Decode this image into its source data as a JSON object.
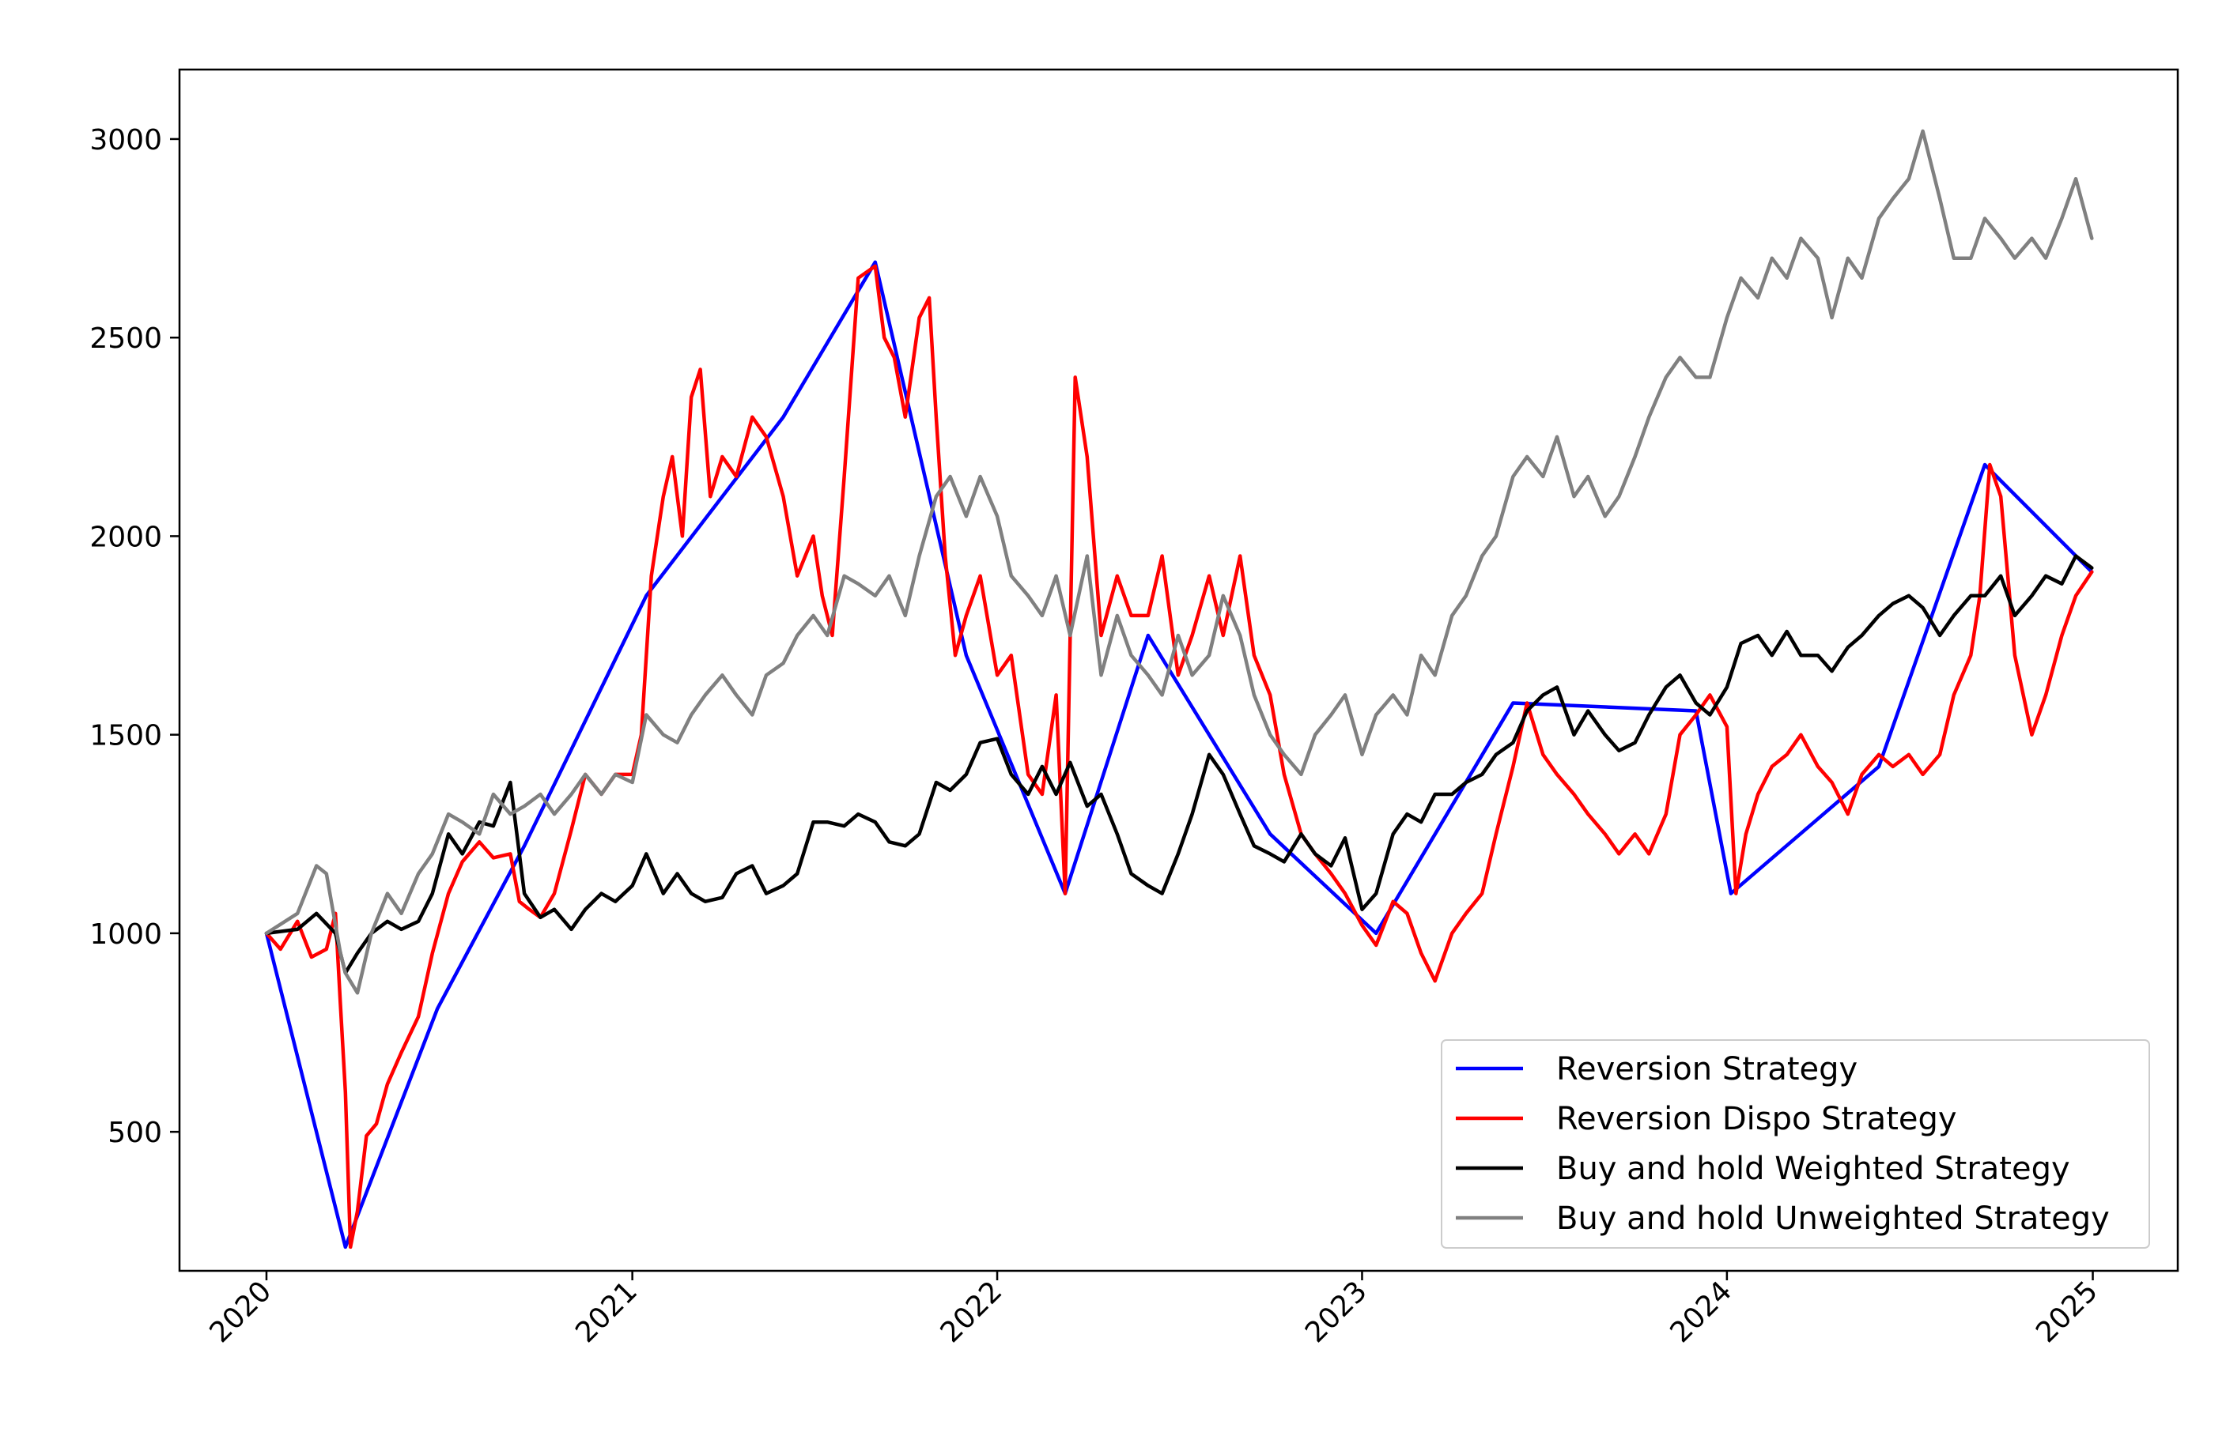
{
  "chart_data": {
    "type": "line",
    "title": "",
    "xlabel": "",
    "ylabel": "",
    "x_range": [
      "2019-10-06",
      "2025-03-27"
    ],
    "ylim": [
      150,
      3175
    ],
    "grid": false,
    "legend_position": "lower right",
    "y_ticks": [
      {
        "value": 500,
        "label": "500"
      },
      {
        "value": 1000,
        "label": "1000"
      },
      {
        "value": 1500,
        "label": "1500"
      },
      {
        "value": 2000,
        "label": "2000"
      },
      {
        "value": 2500,
        "label": "2500"
      },
      {
        "value": 3000,
        "label": "3000"
      }
    ],
    "x_ticks": [
      {
        "date": "2020-01-01",
        "label": "2020"
      },
      {
        "date": "2021-01-01",
        "label": "2021"
      },
      {
        "date": "2022-01-01",
        "label": "2022"
      },
      {
        "date": "2023-01-01",
        "label": "2023"
      },
      {
        "date": "2024-01-01",
        "label": "2024"
      },
      {
        "date": "2025-01-01",
        "label": "2025"
      }
    ],
    "series": [
      {
        "name": "Reversion Strategy",
        "color": "#0000ff",
        "x": [
          "2020-01-01",
          "2020-03-20",
          "2020-06-20",
          "2020-09-15",
          "2021-01-15",
          "2021-06-01",
          "2021-09-01",
          "2021-12-01",
          "2022-03-10",
          "2022-06-01",
          "2022-10-01",
          "2023-01-15",
          "2023-06-01",
          "2023-12-01",
          "2024-01-05",
          "2024-06-01",
          "2024-09-15",
          "2024-12-31"
        ],
        "values": [
          1000,
          210,
          810,
          1220,
          1850,
          2300,
          2690,
          1700,
          1100,
          1750,
          1250,
          1000,
          1580,
          1560,
          1100,
          1420,
          2180,
          1910
        ]
      },
      {
        "name": "Reversion Dispo Strategy",
        "color": "#ff0000",
        "x": [
          "2020-01-01",
          "2020-01-15",
          "2020-02-01",
          "2020-02-15",
          "2020-03-01",
          "2020-03-10",
          "2020-03-15",
          "2020-03-20",
          "2020-03-25",
          "2020-04-01",
          "2020-04-10",
          "2020-04-20",
          "2020-05-01",
          "2020-05-15",
          "2020-06-01",
          "2020-06-15",
          "2020-07-01",
          "2020-07-15",
          "2020-08-01",
          "2020-08-15",
          "2020-09-01",
          "2020-09-10",
          "2020-09-20",
          "2020-10-01",
          "2020-10-15",
          "2020-11-01",
          "2020-11-15",
          "2020-12-01",
          "2020-12-15",
          "2021-01-01",
          "2021-01-10",
          "2021-01-20",
          "2021-02-01",
          "2021-02-10",
          "2021-02-20",
          "2021-03-01",
          "2021-03-10",
          "2021-03-20",
          "2021-04-01",
          "2021-04-15",
          "2021-05-01",
          "2021-05-15",
          "2021-06-01",
          "2021-06-15",
          "2021-07-01",
          "2021-07-10",
          "2021-07-20",
          "2021-08-01",
          "2021-08-15",
          "2021-09-01",
          "2021-09-10",
          "2021-09-20",
          "2021-10-01",
          "2021-10-15",
          "2021-10-25",
          "2021-11-01",
          "2021-11-10",
          "2021-11-20",
          "2021-12-01",
          "2021-12-15",
          "2022-01-01",
          "2022-01-15",
          "2022-02-01",
          "2022-02-15",
          "2022-03-01",
          "2022-03-10",
          "2022-03-20",
          "2022-04-01",
          "2022-04-15",
          "2022-05-01",
          "2022-05-15",
          "2022-06-01",
          "2022-06-15",
          "2022-07-01",
          "2022-07-15",
          "2022-08-01",
          "2022-08-15",
          "2022-09-01",
          "2022-09-15",
          "2022-10-01",
          "2022-10-15",
          "2022-11-01",
          "2022-11-15",
          "2022-12-01",
          "2022-12-15",
          "2023-01-01",
          "2023-01-15",
          "2023-02-01",
          "2023-02-15",
          "2023-03-01",
          "2023-03-15",
          "2023-04-01",
          "2023-04-15",
          "2023-05-01",
          "2023-05-15",
          "2023-06-01",
          "2023-06-15",
          "2023-07-01",
          "2023-07-15",
          "2023-08-01",
          "2023-08-15",
          "2023-09-01",
          "2023-09-15",
          "2023-10-01",
          "2023-10-15",
          "2023-11-01",
          "2023-11-15",
          "2023-12-01",
          "2023-12-15",
          "2024-01-01",
          "2024-01-10",
          "2024-01-20",
          "2024-02-01",
          "2024-02-15",
          "2024-03-01",
          "2024-03-15",
          "2024-04-01",
          "2024-04-15",
          "2024-05-01",
          "2024-05-15",
          "2024-06-01",
          "2024-06-15",
          "2024-07-01",
          "2024-07-15",
          "2024-08-01",
          "2024-08-15",
          "2024-09-01",
          "2024-09-10",
          "2024-09-20",
          "2024-10-01",
          "2024-10-15",
          "2024-11-01",
          "2024-11-15",
          "2024-12-01",
          "2024-12-15",
          "2024-12-31"
        ],
        "values": [
          1000,
          960,
          1030,
          940,
          960,
          1050,
          820,
          600,
          210,
          300,
          490,
          520,
          620,
          700,
          790,
          950,
          1100,
          1180,
          1230,
          1190,
          1200,
          1080,
          1060,
          1040,
          1100,
          1260,
          1400,
          1350,
          1400,
          1400,
          1500,
          1900,
          2100,
          2200,
          2000,
          2350,
          2420,
          2100,
          2200,
          2150,
          2300,
          2250,
          2100,
          1900,
          2000,
          1850,
          1750,
          2150,
          2650,
          2680,
          2500,
          2450,
          2300,
          2550,
          2600,
          2300,
          1950,
          1700,
          1800,
          1900,
          1650,
          1700,
          1400,
          1350,
          1600,
          1100,
          2400,
          2200,
          1750,
          1900,
          1800,
          1800,
          1950,
          1650,
          1750,
          1900,
          1750,
          1950,
          1700,
          1600,
          1400,
          1250,
          1200,
          1150,
          1100,
          1020,
          970,
          1080,
          1050,
          950,
          880,
          1000,
          1050,
          1100,
          1250,
          1420,
          1580,
          1450,
          1400,
          1350,
          1300,
          1250,
          1200,
          1250,
          1200,
          1300,
          1500,
          1550,
          1600,
          1520,
          1100,
          1250,
          1350,
          1420,
          1450,
          1500,
          1420,
          1380,
          1300,
          1400,
          1450,
          1420,
          1450,
          1400,
          1450,
          1600,
          1700,
          1850,
          2180,
          2100,
          1700,
          1500,
          1600,
          1750,
          1850,
          1910
        ]
      },
      {
        "name": "Buy and hold Weighted Strategy",
        "color": "#000000",
        "x": [
          "2020-01-01",
          "2020-02-01",
          "2020-02-20",
          "2020-03-10",
          "2020-03-20",
          "2020-04-01",
          "2020-04-15",
          "2020-05-01",
          "2020-05-15",
          "2020-06-01",
          "2020-06-15",
          "2020-07-01",
          "2020-07-15",
          "2020-08-01",
          "2020-08-15",
          "2020-09-01",
          "2020-09-15",
          "2020-10-01",
          "2020-10-15",
          "2020-11-01",
          "2020-11-15",
          "2020-12-01",
          "2020-12-15",
          "2021-01-01",
          "2021-01-15",
          "2021-02-01",
          "2021-02-15",
          "2021-03-01",
          "2021-03-15",
          "2021-04-01",
          "2021-04-15",
          "2021-05-01",
          "2021-05-15",
          "2021-06-01",
          "2021-06-15",
          "2021-07-01",
          "2021-07-15",
          "2021-08-01",
          "2021-08-15",
          "2021-09-01",
          "2021-09-15",
          "2021-10-01",
          "2021-10-15",
          "2021-11-01",
          "2021-11-15",
          "2021-12-01",
          "2021-12-15",
          "2022-01-01",
          "2022-01-15",
          "2022-02-01",
          "2022-02-15",
          "2022-03-01",
          "2022-03-15",
          "2022-04-01",
          "2022-04-15",
          "2022-05-01",
          "2022-05-15",
          "2022-06-01",
          "2022-06-15",
          "2022-07-01",
          "2022-07-15",
          "2022-08-01",
          "2022-08-15",
          "2022-09-01",
          "2022-09-15",
          "2022-10-01",
          "2022-10-15",
          "2022-11-01",
          "2022-11-15",
          "2022-12-01",
          "2022-12-15",
          "2023-01-01",
          "2023-01-15",
          "2023-02-01",
          "2023-02-15",
          "2023-03-01",
          "2023-03-15",
          "2023-04-01",
          "2023-04-15",
          "2023-05-01",
          "2023-05-15",
          "2023-06-01",
          "2023-06-15",
          "2023-07-01",
          "2023-07-15",
          "2023-08-01",
          "2023-08-15",
          "2023-09-01",
          "2023-09-15",
          "2023-10-01",
          "2023-10-15",
          "2023-11-01",
          "2023-11-15",
          "2023-12-01",
          "2023-12-15",
          "2024-01-01",
          "2024-01-15",
          "2024-02-01",
          "2024-02-15",
          "2024-03-01",
          "2024-03-15",
          "2024-04-01",
          "2024-04-15",
          "2024-05-01",
          "2024-05-15",
          "2024-06-01",
          "2024-06-15",
          "2024-07-01",
          "2024-07-15",
          "2024-08-01",
          "2024-08-15",
          "2024-09-01",
          "2024-09-15",
          "2024-10-01",
          "2024-10-15",
          "2024-11-01",
          "2024-11-15",
          "2024-12-01",
          "2024-12-15",
          "2024-12-31"
        ],
        "values": [
          1000,
          1010,
          1050,
          1000,
          900,
          950,
          1000,
          1030,
          1010,
          1030,
          1100,
          1250,
          1200,
          1280,
          1270,
          1380,
          1100,
          1040,
          1060,
          1010,
          1060,
          1100,
          1080,
          1120,
          1200,
          1100,
          1150,
          1100,
          1080,
          1090,
          1150,
          1170,
          1100,
          1120,
          1150,
          1280,
          1280,
          1270,
          1300,
          1280,
          1230,
          1220,
          1250,
          1380,
          1360,
          1400,
          1480,
          1490,
          1400,
          1350,
          1420,
          1350,
          1430,
          1320,
          1350,
          1250,
          1150,
          1120,
          1100,
          1200,
          1300,
          1450,
          1400,
          1300,
          1220,
          1200,
          1180,
          1250,
          1200,
          1170,
          1240,
          1060,
          1100,
          1250,
          1300,
          1280,
          1350,
          1350,
          1380,
          1400,
          1450,
          1480,
          1560,
          1600,
          1620,
          1500,
          1560,
          1500,
          1460,
          1480,
          1550,
          1620,
          1650,
          1580,
          1550,
          1620,
          1730,
          1750,
          1700,
          1760,
          1700,
          1700,
          1660,
          1720,
          1750,
          1800,
          1830,
          1850,
          1820,
          1750,
          1800,
          1850,
          1850,
          1900,
          1800,
          1850,
          1900,
          1880,
          1950,
          1920
        ]
      },
      {
        "name": "Buy and hold Unweighted Strategy",
        "color": "#808080",
        "x": [
          "2020-01-01",
          "2020-02-01",
          "2020-02-20",
          "2020-03-01",
          "2020-03-15",
          "2020-03-20",
          "2020-04-01",
          "2020-04-15",
          "2020-05-01",
          "2020-05-15",
          "2020-06-01",
          "2020-06-15",
          "2020-07-01",
          "2020-07-15",
          "2020-08-01",
          "2020-08-15",
          "2020-09-01",
          "2020-09-15",
          "2020-10-01",
          "2020-10-15",
          "2020-11-01",
          "2020-11-15",
          "2020-12-01",
          "2020-12-15",
          "2021-01-01",
          "2021-01-15",
          "2021-02-01",
          "2021-02-15",
          "2021-03-01",
          "2021-03-15",
          "2021-04-01",
          "2021-04-15",
          "2021-05-01",
          "2021-05-15",
          "2021-06-01",
          "2021-06-15",
          "2021-07-01",
          "2021-07-15",
          "2021-08-01",
          "2021-08-15",
          "2021-09-01",
          "2021-09-15",
          "2021-10-01",
          "2021-10-15",
          "2021-11-01",
          "2021-11-15",
          "2021-12-01",
          "2021-12-15",
          "2022-01-01",
          "2022-01-15",
          "2022-02-01",
          "2022-02-15",
          "2022-03-01",
          "2022-03-15",
          "2022-04-01",
          "2022-04-15",
          "2022-05-01",
          "2022-05-15",
          "2022-06-01",
          "2022-06-15",
          "2022-07-01",
          "2022-07-15",
          "2022-08-01",
          "2022-08-15",
          "2022-09-01",
          "2022-09-15",
          "2022-10-01",
          "2022-10-15",
          "2022-11-01",
          "2022-11-15",
          "2022-12-01",
          "2022-12-15",
          "2023-01-01",
          "2023-01-15",
          "2023-02-01",
          "2023-02-15",
          "2023-03-01",
          "2023-03-15",
          "2023-04-01",
          "2023-04-15",
          "2023-05-01",
          "2023-05-15",
          "2023-06-01",
          "2023-06-15",
          "2023-07-01",
          "2023-07-15",
          "2023-08-01",
          "2023-08-15",
          "2023-09-01",
          "2023-09-15",
          "2023-10-01",
          "2023-10-15",
          "2023-11-01",
          "2023-11-15",
          "2023-12-01",
          "2023-12-15",
          "2024-01-01",
          "2024-01-15",
          "2024-02-01",
          "2024-02-15",
          "2024-03-01",
          "2024-03-15",
          "2024-04-01",
          "2024-04-15",
          "2024-05-01",
          "2024-05-15",
          "2024-06-01",
          "2024-06-15",
          "2024-07-01",
          "2024-07-15",
          "2024-08-01",
          "2024-08-15",
          "2024-09-01",
          "2024-09-15",
          "2024-10-01",
          "2024-10-15",
          "2024-11-01",
          "2024-11-15",
          "2024-12-01",
          "2024-12-15",
          "2024-12-31"
        ],
        "values": [
          1000,
          1050,
          1170,
          1150,
          950,
          900,
          850,
          1000,
          1100,
          1050,
          1150,
          1200,
          1300,
          1280,
          1250,
          1350,
          1300,
          1320,
          1350,
          1300,
          1350,
          1400,
          1350,
          1400,
          1380,
          1550,
          1500,
          1480,
          1550,
          1600,
          1650,
          1600,
          1550,
          1650,
          1680,
          1750,
          1800,
          1750,
          1900,
          1880,
          1850,
          1900,
          1800,
          1950,
          2100,
          2150,
          2050,
          2150,
          2050,
          1900,
          1850,
          1800,
          1900,
          1750,
          1950,
          1650,
          1800,
          1700,
          1650,
          1600,
          1750,
          1650,
          1700,
          1850,
          1750,
          1600,
          1500,
          1450,
          1400,
          1500,
          1550,
          1600,
          1450,
          1550,
          1600,
          1550,
          1700,
          1650,
          1800,
          1850,
          1950,
          2000,
          2150,
          2200,
          2150,
          2250,
          2100,
          2150,
          2050,
          2100,
          2200,
          2300,
          2400,
          2450,
          2400,
          2400,
          2550,
          2650,
          2600,
          2700,
          2650,
          2750,
          2700,
          2550,
          2700,
          2650,
          2800,
          2850,
          2900,
          3020,
          2850,
          2700,
          2700,
          2800,
          2750,
          2700,
          2750,
          2700,
          2800,
          2900,
          2750
        ]
      }
    ]
  }
}
